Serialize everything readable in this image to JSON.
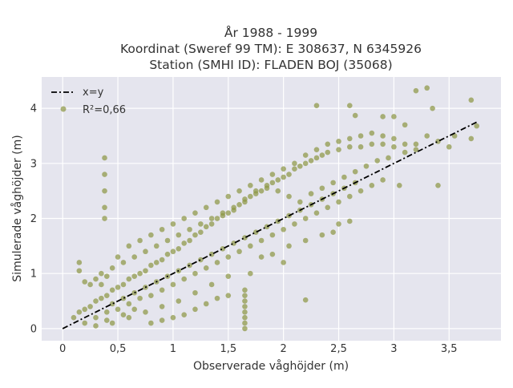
{
  "chart_data": {
    "type": "scatter",
    "title_lines": [
      "År 1988 - 1999",
      "Koordinat (Sweref 99 TM): E 308637, N 6345926",
      "Station (SMHI ID): FLADEN BOJ (35068)"
    ],
    "xlabel": "Observerade våghöjder (m)",
    "ylabel": "Simulerade våghöjder (m)",
    "xlim": [
      -0.19,
      3.97
    ],
    "ylim": [
      -0.22,
      4.57
    ],
    "xticks": [
      0,
      0.5,
      1,
      1.5,
      2,
      2.5,
      3,
      3.5
    ],
    "xtick_labels": [
      "0",
      "0,5",
      "1",
      "1,5",
      "2",
      "2,5",
      "3",
      "3,5"
    ],
    "yticks": [
      0,
      1,
      2,
      3,
      4
    ],
    "ytick_labels": [
      "0",
      "1",
      "2",
      "3",
      "4"
    ],
    "grid": true,
    "legend_position": "top-left",
    "legend": [
      {
        "label": "x=y",
        "type": "line"
      },
      {
        "label": "R²=0,66",
        "type": "marker"
      }
    ],
    "reference_line": {
      "name": "x=y",
      "x": [
        0,
        3.75
      ],
      "y": [
        0,
        3.75
      ],
      "color": "#000000",
      "style": "dash-dot"
    },
    "series": [
      {
        "marker_color": "#8b9642",
        "points": [
          [
            0.1,
            0.2
          ],
          [
            0.15,
            0.3
          ],
          [
            0.2,
            0.35
          ],
          [
            0.25,
            0.4
          ],
          [
            0.3,
            0.5
          ],
          [
            0.35,
            0.55
          ],
          [
            0.4,
            0.6
          ],
          [
            0.45,
            0.7
          ],
          [
            0.5,
            0.75
          ],
          [
            0.55,
            0.8
          ],
          [
            0.6,
            0.9
          ],
          [
            0.65,
            0.95
          ],
          [
            0.7,
            1.0
          ],
          [
            0.75,
            1.05
          ],
          [
            0.8,
            1.15
          ],
          [
            0.85,
            1.2
          ],
          [
            0.9,
            1.25
          ],
          [
            0.95,
            1.35
          ],
          [
            1.0,
            1.4
          ],
          [
            1.05,
            1.45
          ],
          [
            1.1,
            1.55
          ],
          [
            1.15,
            1.6
          ],
          [
            1.2,
            1.7
          ],
          [
            1.25,
            1.75
          ],
          [
            1.3,
            1.85
          ],
          [
            1.35,
            1.9
          ],
          [
            1.4,
            2.0
          ],
          [
            1.45,
            2.05
          ],
          [
            1.5,
            2.1
          ],
          [
            1.55,
            2.15
          ],
          [
            1.6,
            2.25
          ],
          [
            1.65,
            2.3
          ],
          [
            1.7,
            2.4
          ],
          [
            1.75,
            2.45
          ],
          [
            1.8,
            2.5
          ],
          [
            1.85,
            2.55
          ],
          [
            1.9,
            2.65
          ],
          [
            1.95,
            2.7
          ],
          [
            2.0,
            2.75
          ],
          [
            2.05,
            2.8
          ],
          [
            2.1,
            2.9
          ],
          [
            2.15,
            2.95
          ],
          [
            2.2,
            3.0
          ],
          [
            2.25,
            3.05
          ],
          [
            2.3,
            3.1
          ],
          [
            2.35,
            3.15
          ],
          [
            2.4,
            3.2
          ],
          [
            2.5,
            3.25
          ],
          [
            2.6,
            3.3
          ],
          [
            2.7,
            3.3
          ],
          [
            2.8,
            3.35
          ],
          [
            2.9,
            3.35
          ],
          [
            3.0,
            3.3
          ],
          [
            3.1,
            3.2
          ],
          [
            3.2,
            3.35
          ],
          [
            3.3,
            3.5
          ],
          [
            3.4,
            3.4
          ],
          [
            3.5,
            3.3
          ],
          [
            3.55,
            3.5
          ],
          [
            3.7,
            3.45
          ],
          [
            2.9,
            3.85
          ],
          [
            3.0,
            3.85
          ],
          [
            3.1,
            3.7
          ],
          [
            3.3,
            4.37
          ],
          [
            3.2,
            4.32
          ],
          [
            3.35,
            4.0
          ],
          [
            3.7,
            4.15
          ],
          [
            3.75,
            3.68
          ],
          [
            2.3,
            4.05
          ],
          [
            2.6,
            4.05
          ],
          [
            2.65,
            3.87
          ],
          [
            3.05,
            2.6
          ],
          [
            3.4,
            2.6
          ],
          [
            2.2,
            0.52
          ],
          [
            1.65,
            0.0
          ],
          [
            1.65,
            0.1
          ],
          [
            1.65,
            0.2
          ],
          [
            1.65,
            0.3
          ],
          [
            1.65,
            0.4
          ],
          [
            1.65,
            0.5
          ],
          [
            1.65,
            0.6
          ],
          [
            1.65,
            0.7
          ],
          [
            0.38,
            2.0
          ],
          [
            0.38,
            2.2
          ],
          [
            0.38,
            2.5
          ],
          [
            0.38,
            2.8
          ],
          [
            0.38,
            3.1
          ],
          [
            0.15,
            1.05
          ],
          [
            0.15,
            1.2
          ],
          [
            0.2,
            0.85
          ],
          [
            0.4,
            0.3
          ],
          [
            0.5,
            0.35
          ],
          [
            0.6,
            0.45
          ],
          [
            0.7,
            0.55
          ],
          [
            0.8,
            0.6
          ],
          [
            0.9,
            0.7
          ],
          [
            1.0,
            0.8
          ],
          [
            1.1,
            0.9
          ],
          [
            1.2,
            1.0
          ],
          [
            1.3,
            1.1
          ],
          [
            1.4,
            1.2
          ],
          [
            1.5,
            1.3
          ],
          [
            1.6,
            1.4
          ],
          [
            1.7,
            1.5
          ],
          [
            1.8,
            1.6
          ],
          [
            1.9,
            1.7
          ],
          [
            2.0,
            1.8
          ],
          [
            2.1,
            1.9
          ],
          [
            2.2,
            2.0
          ],
          [
            2.3,
            2.1
          ],
          [
            2.4,
            2.2
          ],
          [
            2.5,
            2.3
          ],
          [
            2.6,
            2.4
          ],
          [
            2.7,
            2.5
          ],
          [
            2.8,
            2.6
          ],
          [
            2.9,
            2.7
          ],
          [
            0.3,
            0.2
          ],
          [
            0.4,
            0.15
          ],
          [
            0.55,
            0.25
          ],
          [
            0.65,
            0.35
          ],
          [
            0.2,
            0.1
          ],
          [
            0.3,
            0.05
          ],
          [
            0.45,
            0.1
          ],
          [
            0.6,
            0.2
          ],
          [
            0.75,
            0.3
          ],
          [
            0.9,
            0.4
          ],
          [
            1.05,
            0.5
          ],
          [
            1.2,
            0.65
          ],
          [
            1.35,
            0.8
          ],
          [
            1.5,
            0.95
          ],
          [
            0.5,
            1.3
          ],
          [
            0.6,
            1.5
          ],
          [
            0.7,
            1.6
          ],
          [
            0.8,
            1.7
          ],
          [
            0.9,
            1.8
          ],
          [
            1.0,
            1.9
          ],
          [
            1.1,
            2.0
          ],
          [
            1.2,
            2.1
          ],
          [
            1.3,
            2.2
          ],
          [
            1.4,
            2.3
          ],
          [
            1.5,
            2.4
          ],
          [
            1.6,
            2.5
          ],
          [
            1.7,
            2.6
          ],
          [
            1.8,
            2.7
          ],
          [
            1.9,
            2.8
          ],
          [
            2.0,
            2.9
          ],
          [
            2.1,
            3.0
          ],
          [
            2.2,
            3.15
          ],
          [
            2.3,
            3.25
          ],
          [
            2.4,
            3.35
          ],
          [
            2.5,
            3.4
          ],
          [
            2.6,
            3.45
          ],
          [
            2.7,
            3.5
          ],
          [
            2.8,
            3.55
          ],
          [
            2.9,
            3.5
          ],
          [
            3.0,
            3.45
          ],
          [
            3.1,
            3.35
          ],
          [
            3.2,
            3.25
          ],
          [
            0.25,
            0.8
          ],
          [
            0.3,
            0.9
          ],
          [
            0.35,
            1.0
          ],
          [
            0.45,
            1.1
          ],
          [
            0.55,
            1.2
          ],
          [
            0.65,
            1.3
          ],
          [
            0.75,
            1.4
          ],
          [
            0.85,
            1.5
          ],
          [
            0.95,
            1.6
          ],
          [
            1.05,
            1.7
          ],
          [
            1.15,
            1.8
          ],
          [
            1.25,
            1.9
          ],
          [
            1.35,
            2.0
          ],
          [
            1.45,
            2.1
          ],
          [
            1.55,
            2.2
          ],
          [
            1.65,
            2.35
          ],
          [
            1.75,
            2.5
          ],
          [
            1.85,
            2.6
          ],
          [
            1.95,
            2.5
          ],
          [
            2.05,
            2.4
          ],
          [
            2.15,
            2.3
          ],
          [
            2.25,
            2.45
          ],
          [
            2.35,
            2.55
          ],
          [
            2.45,
            2.65
          ],
          [
            2.55,
            2.75
          ],
          [
            2.65,
            2.85
          ],
          [
            2.75,
            2.95
          ],
          [
            2.85,
            3.05
          ],
          [
            2.95,
            3.1
          ],
          [
            0.45,
            0.45
          ],
          [
            0.55,
            0.55
          ],
          [
            0.65,
            0.65
          ],
          [
            0.75,
            0.75
          ],
          [
            0.85,
            0.85
          ],
          [
            0.95,
            0.95
          ],
          [
            1.05,
            1.05
          ],
          [
            1.15,
            1.15
          ],
          [
            1.25,
            1.25
          ],
          [
            1.35,
            1.35
          ],
          [
            1.45,
            1.45
          ],
          [
            1.55,
            1.55
          ],
          [
            1.65,
            1.65
          ],
          [
            1.75,
            1.75
          ],
          [
            1.85,
            1.85
          ],
          [
            1.95,
            1.95
          ],
          [
            2.05,
            2.05
          ],
          [
            2.15,
            2.15
          ],
          [
            2.25,
            2.25
          ],
          [
            2.35,
            2.35
          ],
          [
            2.45,
            2.45
          ],
          [
            2.55,
            2.55
          ],
          [
            2.65,
            2.65
          ],
          [
            2.05,
            1.5
          ],
          [
            2.2,
            1.6
          ],
          [
            2.35,
            1.7
          ],
          [
            2.45,
            1.75
          ],
          [
            2.5,
            1.9
          ],
          [
            2.6,
            1.95
          ],
          [
            1.8,
            1.3
          ],
          [
            1.9,
            1.35
          ],
          [
            2.0,
            1.2
          ],
          [
            1.7,
            1.0
          ],
          [
            1.0,
            0.2
          ],
          [
            1.1,
            0.25
          ],
          [
            1.2,
            0.35
          ],
          [
            1.3,
            0.45
          ],
          [
            1.4,
            0.55
          ],
          [
            1.5,
            0.6
          ],
          [
            0.8,
            0.1
          ],
          [
            0.9,
            0.15
          ],
          [
            0.35,
            0.8
          ],
          [
            0.4,
            0.95
          ]
        ]
      }
    ]
  }
}
